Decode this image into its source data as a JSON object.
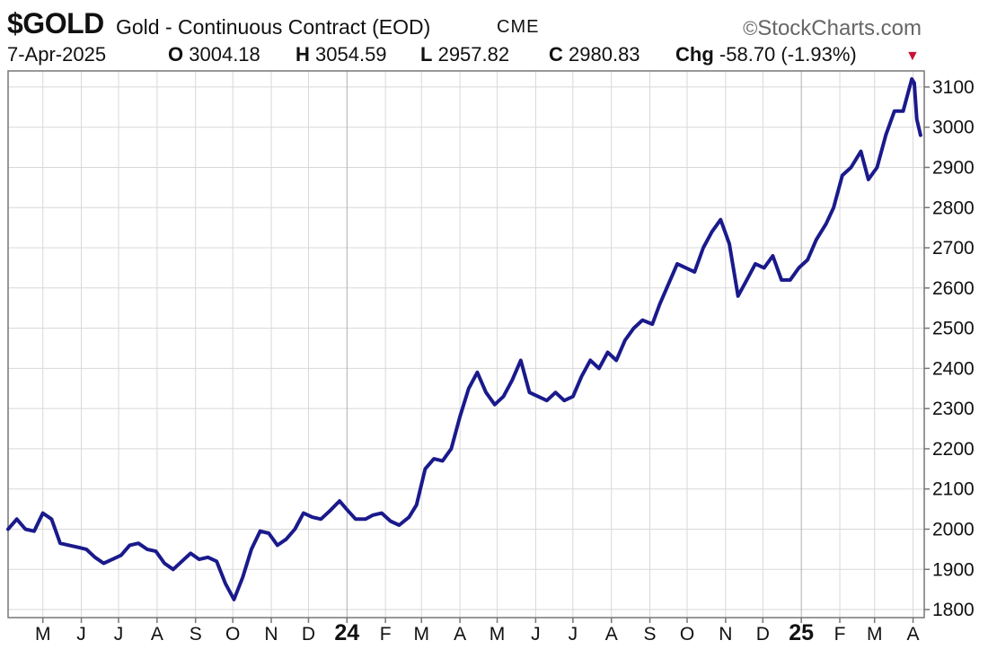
{
  "header": {
    "symbol": "$GOLD",
    "title": "Gold - Continuous Contract (EOD)",
    "exchange": "CME",
    "brand": "StockCharts.com",
    "copyright_symbol": "©",
    "date": "7-Apr-2025",
    "open_label": "O",
    "open_value": "3004.18",
    "high_label": "H",
    "high_value": "3054.59",
    "low_label": "L",
    "low_value": "2957.82",
    "close_label": "C",
    "close_value": "2980.83",
    "chg_label": "Chg",
    "chg_value": "-58.70 (-1.93%)",
    "chg_icon": "triangle-down-icon",
    "chg_color": "#cc1133"
  },
  "chart_data": {
    "type": "line",
    "title": "Gold - Continuous Contract (EOD)",
    "series": [
      {
        "name": "$GOLD",
        "color": "#1a1a8c",
        "x": [
          "2023-04-03",
          "2023-04-10",
          "2023-04-17",
          "2023-04-24",
          "2023-05-01",
          "2023-05-08",
          "2023-05-15",
          "2023-05-22",
          "2023-05-29",
          "2023-06-05",
          "2023-06-12",
          "2023-06-19",
          "2023-06-26",
          "2023-07-03",
          "2023-07-10",
          "2023-07-17",
          "2023-07-24",
          "2023-07-31",
          "2023-08-07",
          "2023-08-14",
          "2023-08-21",
          "2023-08-28",
          "2023-09-04",
          "2023-09-11",
          "2023-09-18",
          "2023-09-25",
          "2023-10-02",
          "2023-10-09",
          "2023-10-16",
          "2023-10-23",
          "2023-10-30",
          "2023-11-06",
          "2023-11-13",
          "2023-11-20",
          "2023-11-27",
          "2023-12-04",
          "2023-12-11",
          "2023-12-18",
          "2023-12-26",
          "2024-01-02",
          "2024-01-08",
          "2024-01-16",
          "2024-01-22",
          "2024-01-29",
          "2024-02-05",
          "2024-02-12",
          "2024-02-20",
          "2024-02-26",
          "2024-03-04",
          "2024-03-11",
          "2024-03-18",
          "2024-03-25",
          "2024-04-01",
          "2024-04-08",
          "2024-04-15",
          "2024-04-22",
          "2024-04-29",
          "2024-05-06",
          "2024-05-13",
          "2024-05-20",
          "2024-05-27",
          "2024-06-03",
          "2024-06-10",
          "2024-06-17",
          "2024-06-24",
          "2024-07-01",
          "2024-07-08",
          "2024-07-15",
          "2024-07-22",
          "2024-07-29",
          "2024-08-05",
          "2024-08-12",
          "2024-08-19",
          "2024-08-26",
          "2024-09-03",
          "2024-09-09",
          "2024-09-16",
          "2024-09-23",
          "2024-09-30",
          "2024-10-07",
          "2024-10-14",
          "2024-10-21",
          "2024-10-28",
          "2024-11-04",
          "2024-11-11",
          "2024-11-18",
          "2024-11-25",
          "2024-12-02",
          "2024-12-09",
          "2024-12-16",
          "2024-12-23",
          "2024-12-30",
          "2025-01-06",
          "2025-01-13",
          "2025-01-21",
          "2025-01-27",
          "2025-02-03",
          "2025-02-10",
          "2025-02-18",
          "2025-02-24",
          "2025-03-03",
          "2025-03-10",
          "2025-03-17",
          "2025-03-24",
          "2025-03-31",
          "2025-04-02",
          "2025-04-04",
          "2025-04-07"
        ],
        "values": [
          2000,
          2025,
          2000,
          1995,
          2040,
          2025,
          1965,
          1960,
          1955,
          1950,
          1930,
          1915,
          1925,
          1935,
          1960,
          1965,
          1950,
          1945,
          1915,
          1900,
          1920,
          1940,
          1925,
          1930,
          1920,
          1865,
          1825,
          1880,
          1950,
          1995,
          1990,
          1960,
          1975,
          2000,
          2040,
          2030,
          2025,
          2045,
          2070,
          2045,
          2025,
          2025,
          2035,
          2040,
          2020,
          2010,
          2030,
          2060,
          2150,
          2175,
          2170,
          2200,
          2280,
          2350,
          2390,
          2340,
          2310,
          2330,
          2370,
          2420,
          2340,
          2330,
          2320,
          2340,
          2320,
          2330,
          2380,
          2420,
          2400,
          2440,
          2420,
          2470,
          2500,
          2520,
          2510,
          2560,
          2610,
          2660,
          2650,
          2640,
          2700,
          2740,
          2770,
          2710,
          2580,
          2620,
          2660,
          2650,
          2680,
          2620,
          2620,
          2650,
          2670,
          2720,
          2760,
          2800,
          2880,
          2900,
          2940,
          2870,
          2900,
          2980,
          3040,
          3040,
          3120,
          3110,
          3020,
          2980
        ]
      }
    ],
    "y_ticks": [
      1800,
      1900,
      2000,
      2100,
      2200,
      2300,
      2400,
      2500,
      2600,
      2700,
      2800,
      2900,
      3000,
      3100
    ],
    "ylim": [
      1780,
      3140
    ],
    "x_ticks": [
      {
        "date": "2023-05-01",
        "label": "M",
        "bold": false
      },
      {
        "date": "2023-06-01",
        "label": "J",
        "bold": false
      },
      {
        "date": "2023-07-01",
        "label": "J",
        "bold": false
      },
      {
        "date": "2023-08-01",
        "label": "A",
        "bold": false
      },
      {
        "date": "2023-09-01",
        "label": "S",
        "bold": false
      },
      {
        "date": "2023-10-01",
        "label": "O",
        "bold": false
      },
      {
        "date": "2023-11-01",
        "label": "N",
        "bold": false
      },
      {
        "date": "2023-12-01",
        "label": "D",
        "bold": false
      },
      {
        "date": "2024-01-01",
        "label": "24",
        "bold": true
      },
      {
        "date": "2024-02-01",
        "label": "F",
        "bold": false
      },
      {
        "date": "2024-03-01",
        "label": "M",
        "bold": false
      },
      {
        "date": "2024-04-01",
        "label": "A",
        "bold": false
      },
      {
        "date": "2024-05-01",
        "label": "M",
        "bold": false
      },
      {
        "date": "2024-06-01",
        "label": "J",
        "bold": false
      },
      {
        "date": "2024-07-01",
        "label": "J",
        "bold": false
      },
      {
        "date": "2024-08-01",
        "label": "A",
        "bold": false
      },
      {
        "date": "2024-09-01",
        "label": "S",
        "bold": false
      },
      {
        "date": "2024-10-01",
        "label": "O",
        "bold": false
      },
      {
        "date": "2024-11-01",
        "label": "N",
        "bold": false
      },
      {
        "date": "2024-12-01",
        "label": "D",
        "bold": false
      },
      {
        "date": "2025-01-01",
        "label": "25",
        "bold": true
      },
      {
        "date": "2025-02-01",
        "label": "F",
        "bold": false
      },
      {
        "date": "2025-03-01",
        "label": "M",
        "bold": false
      },
      {
        "date": "2025-04-01",
        "label": "A",
        "bold": false
      }
    ],
    "xlim": [
      "2023-04-03",
      "2025-04-10"
    ],
    "grid": true,
    "y_axis_side": "right",
    "legend": "none"
  }
}
